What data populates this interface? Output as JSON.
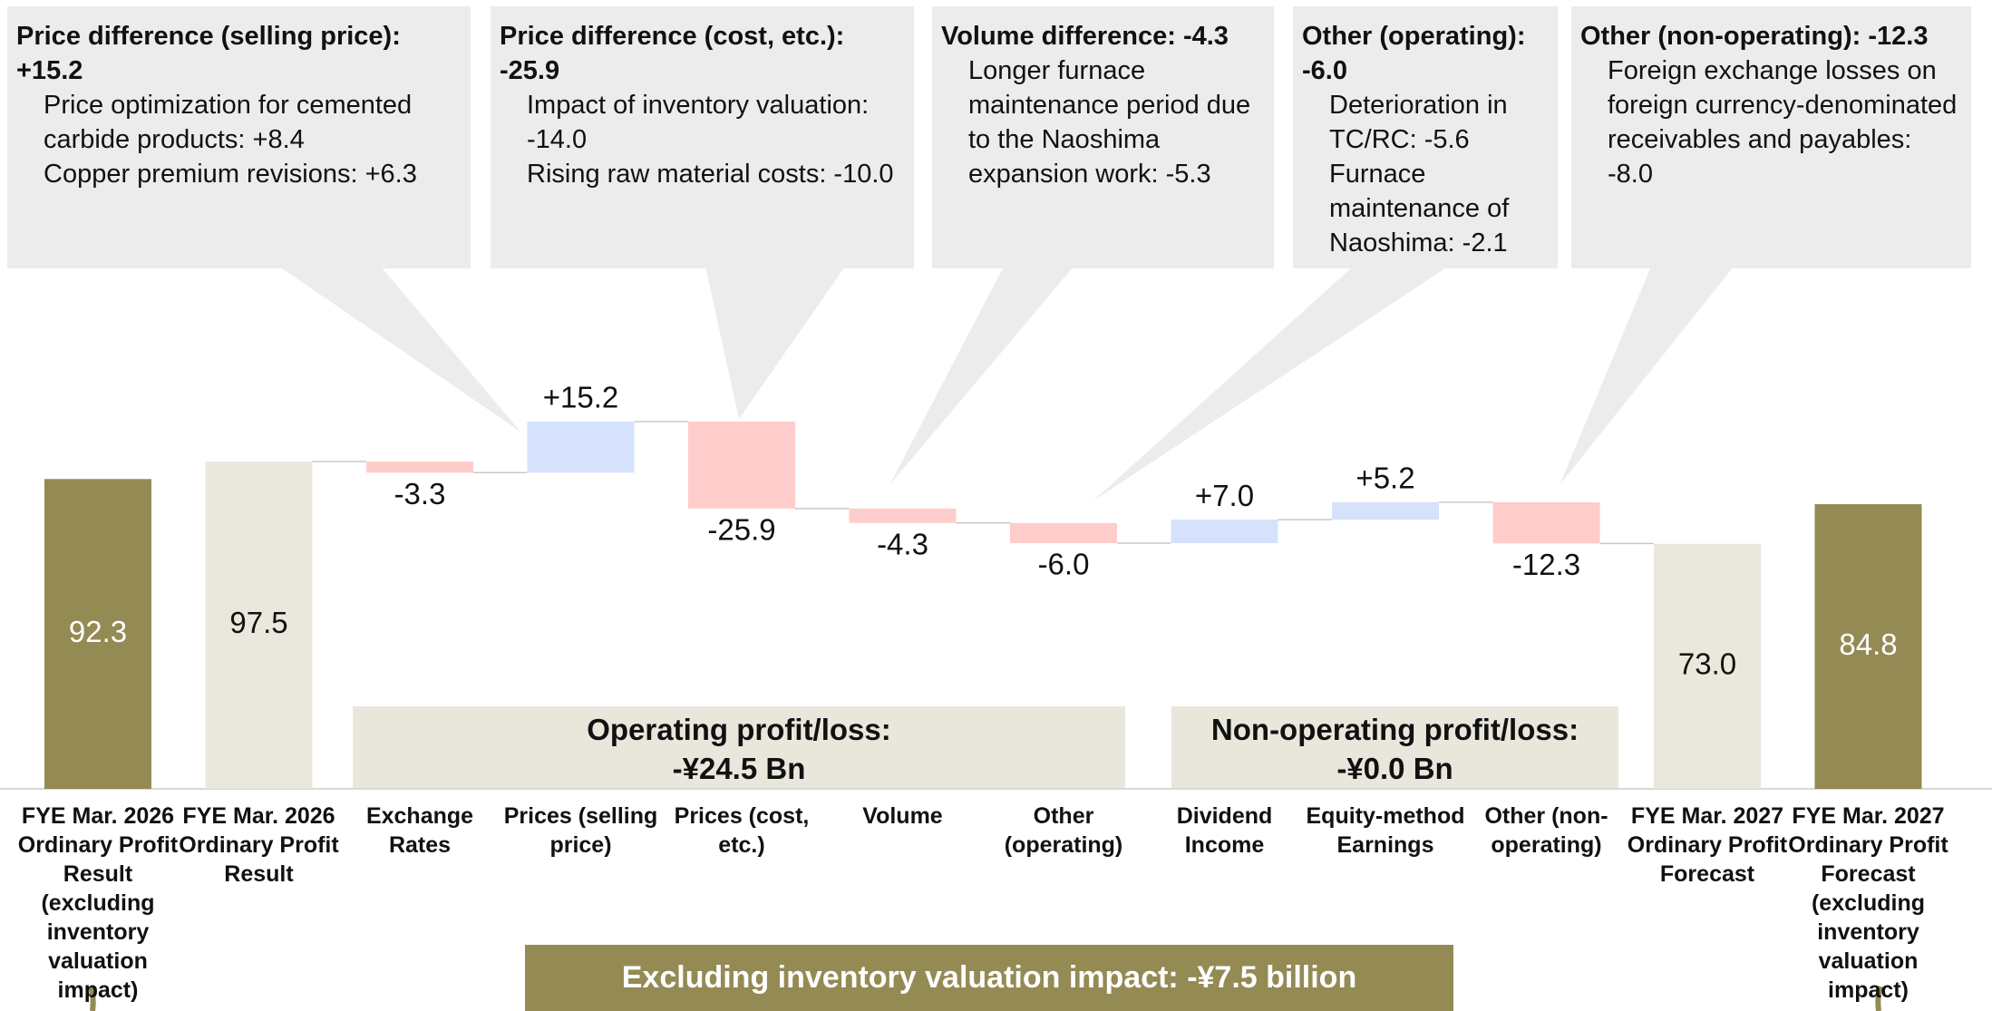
{
  "chart_data": {
    "type": "waterfall",
    "categories": [
      "FYE Mar. 2026 Ordinary Profit Result (excluding inventory valuation impact)",
      "FYE Mar. 2026 Ordinary Profit Result",
      "Exchange Rates",
      "Prices (selling price)",
      "Prices (cost, etc.)",
      "Volume",
      "Other (operating)",
      "Dividend Income",
      "Equity-method Earnings",
      "Other (non-operating)",
      "FYE Mar. 2027 Ordinary Profit Forecast",
      "FYE Mar. 2027 Ordinary Profit Forecast (excluding inventory valuation impact)"
    ],
    "values": [
      92.3,
      97.5,
      -3.3,
      15.2,
      -25.9,
      -4.3,
      -6.0,
      7.0,
      5.2,
      -12.3,
      73.0,
      84.8
    ],
    "value_labels": [
      "92.3",
      "97.5",
      "-3.3",
      "+15.2",
      "-25.9",
      "-4.3",
      "-6.0",
      "+7.0",
      "+5.2",
      "-12.3",
      "73.0",
      "84.8"
    ],
    "measure": [
      "total",
      "total",
      "relative",
      "relative",
      "relative",
      "relative",
      "relative",
      "relative",
      "relative",
      "relative",
      "total",
      "total"
    ],
    "colors": [
      "#948a54",
      "#eae8dc",
      "#ffcccc",
      "#d6e2fb",
      "#ffcccc",
      "#ffcccc",
      "#ffcccc",
      "#d6e2fb",
      "#d6e2fb",
      "#ffcccc",
      "#eae8dc",
      "#948a54"
    ],
    "callouts": [
      {
        "title": "Price difference (selling price): +15.2",
        "items": [
          "Price optimization for cemented carbide products: +8.4",
          "Copper premium revisions: +6.3"
        ]
      },
      {
        "title": "Price difference (cost, etc.): -25.9",
        "items": [
          "Impact of inventory valuation: -14.0",
          "Rising raw material costs: -10.0"
        ]
      },
      {
        "title": "Volume difference: -4.3",
        "items": [
          "Longer furnace maintenance period due to the Naoshima expansion work: -5.3"
        ]
      },
      {
        "title": "Other (operating): -6.0",
        "items": [
          "Deterioration in TC/RC: -5.6",
          "Furnace maintenance of Naoshima: -2.1"
        ]
      },
      {
        "title": "Other (non-operating): -12.3",
        "items": [
          "Foreign exchange losses on foreign currency-denominated receivables and payables: -8.0"
        ]
      }
    ],
    "groups": [
      {
        "title": "Operating profit/loss:",
        "amount": "-¥24.5 Bn"
      },
      {
        "title": "Non-operating profit/loss:",
        "amount": "-¥0.0 Bn"
      }
    ],
    "banner": "Excluding inventory valuation impact: -¥7.5 billion"
  }
}
